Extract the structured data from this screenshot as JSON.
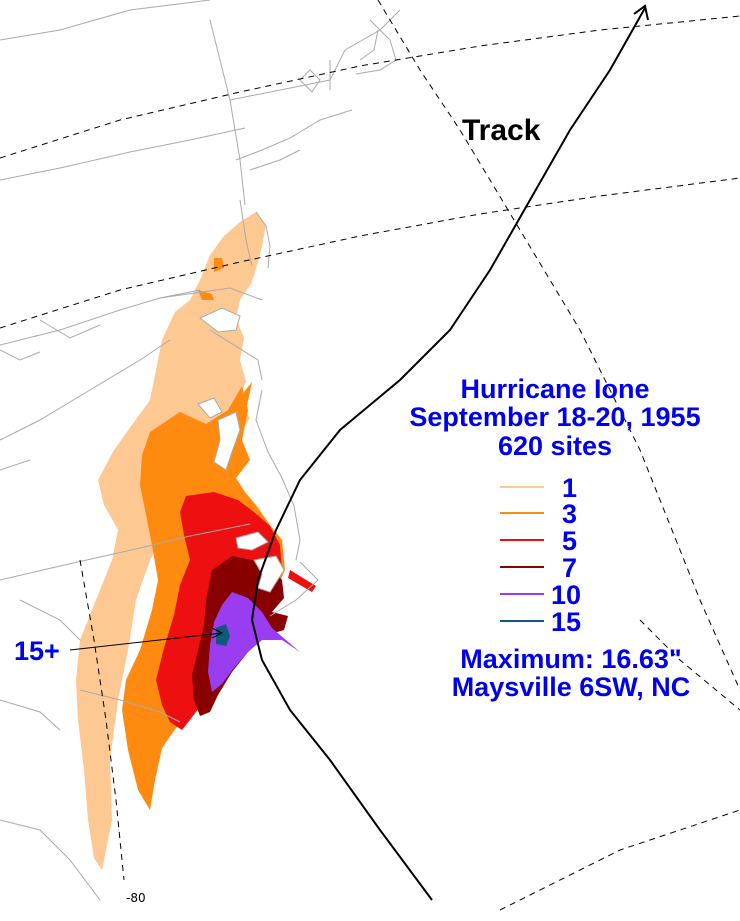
{
  "map": {
    "track_label": "Track",
    "title": "Hurricane Ione",
    "dates": "September 18-20, 1955",
    "sites": "620 sites",
    "legend": [
      {
        "label": "1",
        "color": "#fec892"
      },
      {
        "label": "3",
        "color": "#fe8a10"
      },
      {
        "label": "5",
        "color": "#ee1010"
      },
      {
        "label": "7",
        "color": "#880000"
      },
      {
        "label": "10",
        "color": "#9a3cf0"
      },
      {
        "label": "15",
        "color": "#0e5a78"
      }
    ],
    "maximum": "Maximum:  16.63\"",
    "maximum_location": "Maysville 6SW, NC",
    "max_callout": "15+",
    "lon_label": "-80"
  },
  "colors": {
    "land_outline": "#aaaaaa",
    "graticule": "#000000",
    "track": "#000000",
    "text": "#0000ee"
  }
}
